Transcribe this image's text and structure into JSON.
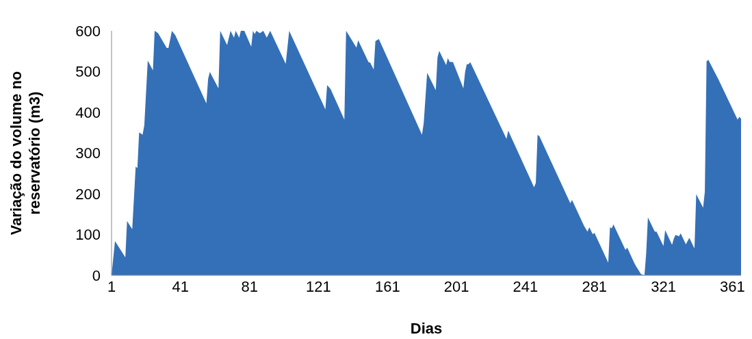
{
  "chart_data": {
    "type": "area",
    "xlabel": "Dias",
    "ylabel": "Variação do volume no reservatório (m3)",
    "x": [
      1,
      3,
      9,
      10,
      13,
      15,
      16,
      17,
      19,
      20,
      22,
      25,
      26,
      28,
      33,
      34,
      36,
      38,
      56,
      57,
      58,
      63,
      64,
      68,
      70,
      72,
      73,
      75,
      76,
      78,
      82,
      83,
      84,
      85,
      87,
      89,
      91,
      93,
      102,
      104,
      125,
      126,
      128,
      136,
      137,
      143,
      144,
      150,
      151,
      153,
      154,
      156,
      181,
      182,
      184,
      189,
      190,
      191,
      195,
      196,
      197,
      199,
      205,
      206,
      207,
      208,
      209,
      230,
      231,
      246,
      247,
      248,
      249,
      267,
      268,
      275,
      277,
      278,
      280,
      281,
      289,
      290,
      291,
      292,
      299,
      300,
      304,
      305,
      308,
      310,
      311,
      312,
      316,
      317,
      321,
      322,
      326,
      327,
      328,
      330,
      331,
      334,
      336,
      339,
      340,
      344,
      345,
      346,
      347,
      353,
      364,
      365,
      366
    ],
    "series": [
      {
        "color": "#3470b8",
        "values": [
          0,
          84,
          44,
          133,
          113,
          267,
          263,
          351,
          345,
          368,
          527,
          503,
          600,
          594,
          558,
          558,
          600,
          589,
          422,
          482,
          499,
          459,
          600,
          565,
          600,
          583,
          600,
          583,
          600,
          600,
          561,
          600,
          592,
          600,
          594,
          600,
          583,
          600,
          519,
          600,
          407,
          467,
          457,
          382,
          600,
          559,
          577,
          523,
          522,
          505,
          575,
          580,
          345,
          373,
          497,
          454,
          535,
          551,
          516,
          533,
          524,
          523,
          459,
          499,
          518,
          518,
          523,
          335,
          355,
          216,
          227,
          344,
          342,
          177,
          185,
          121,
          107,
          118,
          101,
          104,
          31,
          118,
          115,
          125,
          62,
          68,
          31,
          23,
          3,
          0,
          54,
          142,
          107,
          107,
          72,
          111,
          75,
          90,
          99,
          96,
          103,
          76,
          92,
          66,
          199,
          166,
          205,
          525,
          529,
          480,
          382,
          389,
          384
        ]
      }
    ],
    "xlim": [
      1,
      366
    ],
    "xticks": [
      1,
      41,
      81,
      121,
      161,
      201,
      241,
      281,
      321,
      361
    ],
    "ylim": [
      0,
      600
    ],
    "yticks": [
      0,
      100,
      200,
      300,
      400,
      500,
      600
    ],
    "grid": false,
    "legend": false
  }
}
